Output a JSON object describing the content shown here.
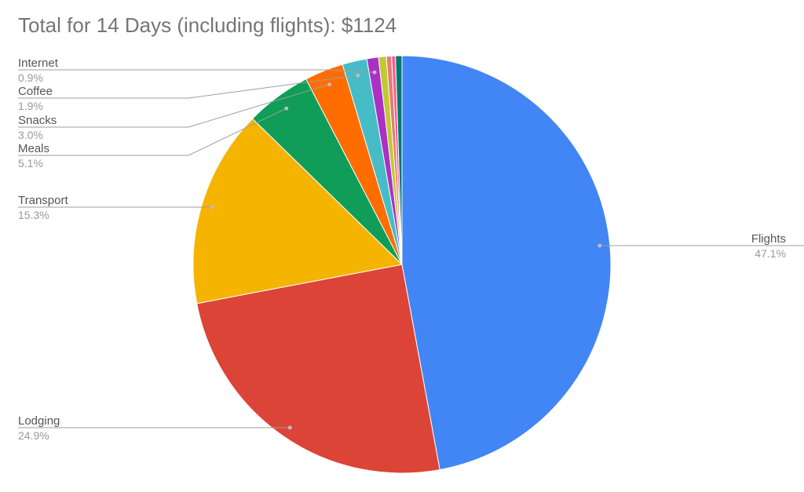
{
  "chart_data": {
    "type": "pie",
    "title": "Total for 14 Days (including flights): $1124",
    "start_angle_deg": 0,
    "direction": "clockwise",
    "slices": [
      {
        "label": "Flights",
        "percent": 47.1,
        "percent_label": "47.1%",
        "color": "#4285F4",
        "show_label": true,
        "label_side": "right"
      },
      {
        "label": "Lodging",
        "percent": 24.9,
        "percent_label": "24.9%",
        "color": "#DB4437",
        "show_label": true,
        "label_side": "left"
      },
      {
        "label": "Transport",
        "percent": 15.3,
        "percent_label": "15.3%",
        "color": "#F4B400",
        "show_label": true,
        "label_side": "left"
      },
      {
        "label": "Meals",
        "percent": 5.1,
        "percent_label": "5.1%",
        "color": "#0F9D58",
        "show_label": true,
        "label_side": "left"
      },
      {
        "label": "Snacks",
        "percent": 3.0,
        "percent_label": "3.0%",
        "color": "#FF6D00",
        "show_label": true,
        "label_side": "left"
      },
      {
        "label": "Coffee",
        "percent": 1.9,
        "percent_label": "1.9%",
        "color": "#46BDC6",
        "show_label": true,
        "label_side": "left"
      },
      {
        "label": "Internet",
        "percent": 0.9,
        "percent_label": "0.9%",
        "color": "#AB30C4",
        "show_label": true,
        "label_side": "left"
      },
      {
        "label": "",
        "percent": 0.6,
        "percent_label": "",
        "color": "#C0CA33",
        "show_label": false
      },
      {
        "label": "",
        "percent": 0.4,
        "percent_label": "",
        "color": "#E67C73",
        "show_label": false
      },
      {
        "label": "",
        "percent": 0.3,
        "percent_label": "",
        "color": "#F06292",
        "show_label": false
      },
      {
        "label": "",
        "percent": 0.5,
        "percent_label": "",
        "color": "#00796B",
        "show_label": false
      }
    ],
    "legend": "none",
    "label_colors": {
      "name": "#555555",
      "percent": "#999999",
      "leader": "#9e9e9e"
    }
  }
}
